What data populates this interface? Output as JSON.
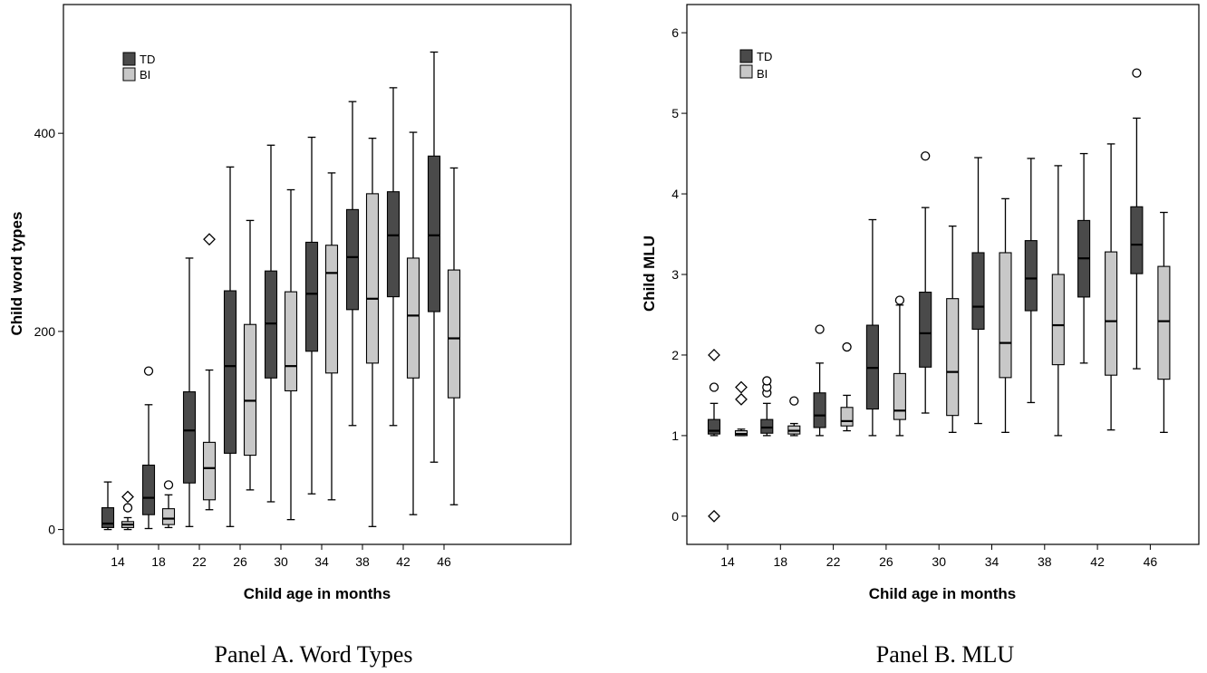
{
  "legend_colors": {
    "TD": "#4a4a4a",
    "BI": "#c8c8c8"
  },
  "panels": [
    {
      "caption": "Panel A. Word Types"
    },
    {
      "caption": "Panel B.  MLU"
    }
  ],
  "chart_data": [
    {
      "type": "boxplot",
      "title": "",
      "xlabel": "Child age in months",
      "ylabel": "Child word types",
      "categories": [
        "14",
        "18",
        "22",
        "26",
        "30",
        "34",
        "38",
        "42",
        "46"
      ],
      "yticks": [
        "0",
        "200",
        "400"
      ],
      "ylim": [
        -15,
        530
      ],
      "legend": {
        "position": "top-left",
        "entries": [
          "TD",
          "BI"
        ]
      },
      "series": [
        {
          "name": "TD",
          "boxes": [
            {
              "min": 0,
              "q1": 2,
              "median": 6,
              "q3": 22,
              "max": 48,
              "outliers": []
            },
            {
              "min": 1,
              "q1": 15,
              "median": 32,
              "q3": 65,
              "max": 126,
              "outliers": [
                {
                  "v": 160,
                  "m": "circle"
                }
              ]
            },
            {
              "min": 3,
              "q1": 47,
              "median": 100,
              "q3": 139,
              "max": 274,
              "outliers": []
            },
            {
              "min": 3,
              "q1": 77,
              "median": 165,
              "q3": 241,
              "max": 366,
              "outliers": []
            },
            {
              "min": 28,
              "q1": 153,
              "median": 208,
              "q3": 261,
              "max": 388,
              "outliers": []
            },
            {
              "min": 36,
              "q1": 180,
              "median": 238,
              "q3": 290,
              "max": 396,
              "outliers": []
            },
            {
              "min": 105,
              "q1": 222,
              "median": 275,
              "q3": 323,
              "max": 432,
              "outliers": []
            },
            {
              "min": 105,
              "q1": 235,
              "median": 297,
              "q3": 341,
              "max": 446,
              "outliers": []
            },
            {
              "min": 68,
              "q1": 220,
              "median": 297,
              "q3": 377,
              "max": 482,
              "outliers": []
            }
          ]
        },
        {
          "name": "BI",
          "boxes": [
            {
              "min": 0,
              "q1": 2,
              "median": 5,
              "q3": 8,
              "max": 12,
              "outliers": [
                {
                  "v": 22,
                  "m": "circle"
                },
                {
                  "v": 33,
                  "m": "diamond"
                }
              ]
            },
            {
              "min": 2,
              "q1": 5,
              "median": 11,
              "q3": 21,
              "max": 35,
              "outliers": [
                {
                  "v": 45,
                  "m": "circle"
                }
              ]
            },
            {
              "min": 20,
              "q1": 30,
              "median": 62,
              "q3": 88,
              "max": 161,
              "outliers": [
                {
                  "v": 293,
                  "m": "diamond"
                }
              ]
            },
            {
              "min": 40,
              "q1": 75,
              "median": 130,
              "q3": 207,
              "max": 312,
              "outliers": []
            },
            {
              "min": 10,
              "q1": 140,
              "median": 165,
              "q3": 240,
              "max": 343,
              "outliers": []
            },
            {
              "min": 30,
              "q1": 158,
              "median": 259,
              "q3": 287,
              "max": 360,
              "outliers": []
            },
            {
              "min": 3,
              "q1": 168,
              "median": 233,
              "q3": 339,
              "max": 395,
              "outliers": []
            },
            {
              "min": 15,
              "q1": 153,
              "median": 216,
              "q3": 274,
              "max": 401,
              "outliers": []
            },
            {
              "min": 25,
              "q1": 133,
              "median": 193,
              "q3": 262,
              "max": 365,
              "outliers": []
            }
          ]
        }
      ]
    },
    {
      "type": "boxplot",
      "title": "",
      "xlabel": "Child age in months",
      "ylabel": "Child MLU",
      "categories": [
        "14",
        "18",
        "22",
        "26",
        "30",
        "34",
        "38",
        "42",
        "46"
      ],
      "yticks": [
        "0",
        "1",
        "2",
        "3",
        "4",
        "5",
        "6"
      ],
      "ylim": [
        -0.35,
        6.35
      ],
      "legend": {
        "position": "top-left",
        "entries": [
          "TD",
          "BI"
        ]
      },
      "series": [
        {
          "name": "TD",
          "boxes": [
            {
              "min": 1.0,
              "q1": 1.02,
              "median": 1.06,
              "q3": 1.2,
              "max": 1.4,
              "outliers": [
                {
                  "v": 1.6,
                  "m": "circle"
                },
                {
                  "v": 2.0,
                  "m": "diamond"
                },
                {
                  "v": 0.0,
                  "m": "diamond"
                }
              ]
            },
            {
              "min": 1.0,
              "q1": 1.03,
              "median": 1.1,
              "q3": 1.2,
              "max": 1.4,
              "outliers": [
                {
                  "v": 1.53,
                  "m": "circle"
                },
                {
                  "v": 1.6,
                  "m": "circle"
                },
                {
                  "v": 1.68,
                  "m": "circle"
                }
              ]
            },
            {
              "min": 1.0,
              "q1": 1.1,
              "median": 1.25,
              "q3": 1.53,
              "max": 1.9,
              "outliers": [
                {
                  "v": 2.32,
                  "m": "circle"
                }
              ]
            },
            {
              "min": 1.0,
              "q1": 1.33,
              "median": 1.84,
              "q3": 2.37,
              "max": 3.68,
              "outliers": []
            },
            {
              "min": 1.28,
              "q1": 1.85,
              "median": 2.27,
              "q3": 2.78,
              "max": 3.83,
              "outliers": [
                {
                  "v": 4.47,
                  "m": "circle"
                }
              ]
            },
            {
              "min": 1.15,
              "q1": 2.32,
              "median": 2.6,
              "q3": 3.27,
              "max": 4.45,
              "outliers": []
            },
            {
              "min": 1.41,
              "q1": 2.55,
              "median": 2.95,
              "q3": 3.42,
              "max": 4.44,
              "outliers": []
            },
            {
              "min": 1.9,
              "q1": 2.72,
              "median": 3.2,
              "q3": 3.67,
              "max": 4.5,
              "outliers": []
            },
            {
              "min": 1.83,
              "q1": 3.01,
              "median": 3.37,
              "q3": 3.84,
              "max": 4.94,
              "outliers": [
                {
                  "v": 5.5,
                  "m": "circle"
                }
              ]
            }
          ]
        },
        {
          "name": "BI",
          "boxes": [
            {
              "min": 1.0,
              "q1": 1.0,
              "median": 1.02,
              "q3": 1.06,
              "max": 1.08,
              "outliers": [
                {
                  "v": 1.45,
                  "m": "diamond"
                },
                {
                  "v": 1.6,
                  "m": "diamond"
                }
              ]
            },
            {
              "min": 1.0,
              "q1": 1.02,
              "median": 1.06,
              "q3": 1.12,
              "max": 1.15,
              "outliers": [
                {
                  "v": 1.43,
                  "m": "circle"
                }
              ]
            },
            {
              "min": 1.06,
              "q1": 1.12,
              "median": 1.18,
              "q3": 1.35,
              "max": 1.5,
              "outliers": [
                {
                  "v": 2.1,
                  "m": "circle"
                }
              ]
            },
            {
              "min": 1.0,
              "q1": 1.2,
              "median": 1.31,
              "q3": 1.77,
              "max": 2.62,
              "outliers": [
                {
                  "v": 2.68,
                  "m": "circle"
                }
              ]
            },
            {
              "min": 1.04,
              "q1": 1.25,
              "median": 1.79,
              "q3": 2.7,
              "max": 3.6,
              "outliers": []
            },
            {
              "min": 1.04,
              "q1": 1.72,
              "median": 2.15,
              "q3": 3.27,
              "max": 3.94,
              "outliers": []
            },
            {
              "min": 1.0,
              "q1": 1.88,
              "median": 2.37,
              "q3": 3.0,
              "max": 4.35,
              "outliers": []
            },
            {
              "min": 1.07,
              "q1": 1.75,
              "median": 2.42,
              "q3": 3.28,
              "max": 4.62,
              "outliers": []
            },
            {
              "min": 1.04,
              "q1": 1.7,
              "median": 2.42,
              "q3": 3.1,
              "max": 3.77,
              "outliers": []
            }
          ]
        }
      ]
    }
  ]
}
